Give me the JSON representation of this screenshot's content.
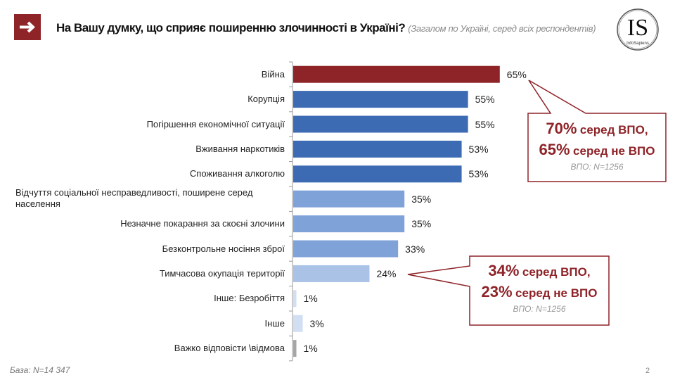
{
  "header": {
    "title": "На Вашу думку, що сприяє поширенню злочинності в Україні?",
    "subtitle": "(Загалом по Україні, серед всіх респондентів)",
    "logo_text": "IS",
    "logo_caption": "InfoSapiens"
  },
  "chart_data": {
    "type": "bar",
    "orientation": "horizontal",
    "categories": [
      "Війна",
      "Корупція",
      "Погіршення економічної ситуації",
      "Вживання наркотиків",
      "Споживання алкоголю",
      "Відчуття соціальної несправедливості, поширене серед населення",
      "Незначне покарання за скоєні злочини",
      "Безконтрольне носіння зброї",
      "Тимчасова окупація території",
      "Інше: Безробіття",
      "Інше",
      "Важко відповісти \\відмова"
    ],
    "values": [
      65,
      55,
      55,
      53,
      53,
      35,
      35,
      33,
      24,
      1,
      3,
      1
    ],
    "value_labels": [
      "65%",
      "55%",
      "55%",
      "53%",
      "53%",
      "35%",
      "35%",
      "33%",
      "24%",
      "1%",
      "3%",
      "1%"
    ],
    "colors": [
      "#8e2328",
      "#3d6bb3",
      "#3d6bb3",
      "#3d6bb3",
      "#3d6bb3",
      "#7fa3d8",
      "#7fa3d8",
      "#7fa3d8",
      "#a9c2e6",
      "#d2def2",
      "#d2def2",
      "#a6a6a6"
    ],
    "unit": "%",
    "grid": false
  },
  "callouts": [
    {
      "line1_num": "70%",
      "line1_text": "серед ВПО,",
      "line2_num": "65%",
      "line2_text": "серед не ВПО",
      "note": "ВПО: N=1256",
      "color": "#8e2328"
    },
    {
      "line1_num": "34%",
      "line1_text": "серед ВПО,",
      "line2_num": "23%",
      "line2_text": "серед не ВПО",
      "note": "ВПО: N=1256",
      "color": "#8e2328"
    }
  ],
  "footer": {
    "base": "База: N=14 347",
    "page": "2"
  }
}
